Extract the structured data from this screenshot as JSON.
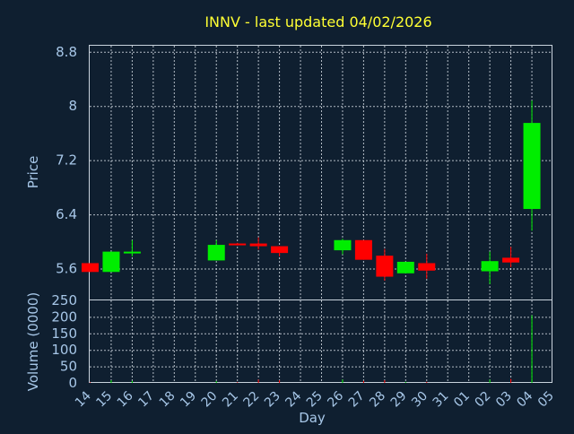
{
  "chart_data": {
    "type": "candlestick",
    "title": "INNV - last updated 04/02/2026",
    "xlabel": "Day",
    "price_ylabel": "Price",
    "volume_ylabel": "Volume (0000)",
    "x_ticks": [
      "14",
      "15",
      "16",
      "17",
      "18",
      "19",
      "20",
      "21",
      "22",
      "23",
      "24",
      "25",
      "26",
      "27",
      "28",
      "29",
      "30",
      "31",
      "01",
      "02",
      "03",
      "04",
      "05"
    ],
    "price_ticks": [
      "8.8",
      "8",
      "7.2",
      "6.4",
      "5.6"
    ],
    "price_tick_values": [
      8.8,
      8.0,
      7.2,
      6.4,
      5.6
    ],
    "price_ylim": [
      5.13,
      8.89
    ],
    "volume_ticks": [
      "250",
      "200",
      "150",
      "100",
      "50",
      "0"
    ],
    "volume_tick_values": [
      250,
      200,
      150,
      100,
      50,
      0
    ],
    "volume_ylim": [
      0,
      250
    ],
    "grid": true,
    "colors": {
      "up": "#00ee00",
      "down": "#ff0000"
    },
    "candles": [
      {
        "day": "14",
        "open": 5.68,
        "high": 5.68,
        "low": 5.55,
        "close": 5.55
      },
      {
        "day": "15",
        "open": 5.55,
        "high": 5.85,
        "low": 5.55,
        "close": 5.85
      },
      {
        "day": "16",
        "open": 5.84,
        "high": 6.02,
        "low": 5.78,
        "close": 5.85
      },
      {
        "day": "20",
        "open": 5.72,
        "high": 6.02,
        "low": 5.72,
        "close": 5.95
      },
      {
        "day": "21",
        "open": 5.97,
        "high": 5.98,
        "low": 5.94,
        "close": 5.95
      },
      {
        "day": "22",
        "open": 5.97,
        "high": 6.06,
        "low": 5.88,
        "close": 5.93
      },
      {
        "day": "23",
        "open": 5.93,
        "high": 5.93,
        "low": 5.78,
        "close": 5.83
      },
      {
        "day": "26",
        "open": 5.87,
        "high": 6.04,
        "low": 5.81,
        "close": 6.02
      },
      {
        "day": "27",
        "open": 6.02,
        "high": 6.02,
        "low": 5.73,
        "close": 5.73
      },
      {
        "day": "28",
        "open": 5.79,
        "high": 5.89,
        "low": 5.42,
        "close": 5.48
      },
      {
        "day": "29",
        "open": 5.53,
        "high": 5.7,
        "low": 5.53,
        "close": 5.7
      },
      {
        "day": "30",
        "open": 5.68,
        "high": 5.82,
        "low": 5.45,
        "close": 5.57
      },
      {
        "day": "02",
        "open": 5.56,
        "high": 5.85,
        "low": 5.37,
        "close": 5.71
      },
      {
        "day": "03",
        "open": 5.76,
        "high": 5.92,
        "low": 5.62,
        "close": 5.69
      },
      {
        "day": "04",
        "open": 6.48,
        "high": 8.08,
        "low": 6.16,
        "close": 7.75
      }
    ],
    "volume": [
      {
        "day": "14",
        "value": 2,
        "dir": "down"
      },
      {
        "day": "15",
        "value": 8,
        "dir": "up"
      },
      {
        "day": "16",
        "value": 6,
        "dir": "up"
      },
      {
        "day": "20",
        "value": 5,
        "dir": "up"
      },
      {
        "day": "21",
        "value": 2,
        "dir": "down"
      },
      {
        "day": "22",
        "value": 10,
        "dir": "down"
      },
      {
        "day": "23",
        "value": 8,
        "dir": "down"
      },
      {
        "day": "26",
        "value": 10,
        "dir": "up"
      },
      {
        "day": "27",
        "value": 6,
        "dir": "down"
      },
      {
        "day": "28",
        "value": 8,
        "dir": "down"
      },
      {
        "day": "29",
        "value": 3,
        "dir": "up"
      },
      {
        "day": "30",
        "value": 3,
        "dir": "down"
      },
      {
        "day": "02",
        "value": 10,
        "dir": "up"
      },
      {
        "day": "03",
        "value": 12,
        "dir": "down"
      },
      {
        "day": "04",
        "value": 205,
        "dir": "up"
      }
    ]
  }
}
